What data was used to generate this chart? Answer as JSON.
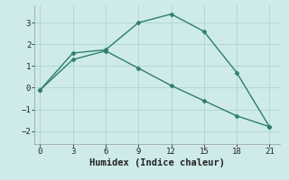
{
  "line1_x": [
    0,
    3,
    6,
    9,
    12,
    15,
    18,
    21
  ],
  "line1_y": [
    -0.1,
    1.6,
    1.75,
    3.0,
    3.4,
    2.6,
    0.7,
    -1.8
  ],
  "line2_x": [
    0,
    3,
    6,
    9,
    12,
    15,
    18,
    21
  ],
  "line2_y": [
    -0.1,
    1.3,
    1.7,
    0.9,
    0.1,
    -0.6,
    -1.3,
    -1.8
  ],
  "color": "#2e7d6e",
  "bg_color": "#ceeaea",
  "grid_color": "#aed4d4",
  "xlabel": "Humidex (Indice chaleur)",
  "xlim": [
    -0.5,
    22
  ],
  "ylim": [
    -2.6,
    3.8
  ],
  "xticks": [
    0,
    3,
    6,
    9,
    12,
    15,
    18,
    21
  ],
  "yticks": [
    -2,
    -1,
    0,
    1,
    2,
    3
  ],
  "xlabel_fontsize": 7.5,
  "tick_fontsize": 6.5,
  "marker": "D",
  "markersize": 2.5,
  "linewidth": 1.0
}
